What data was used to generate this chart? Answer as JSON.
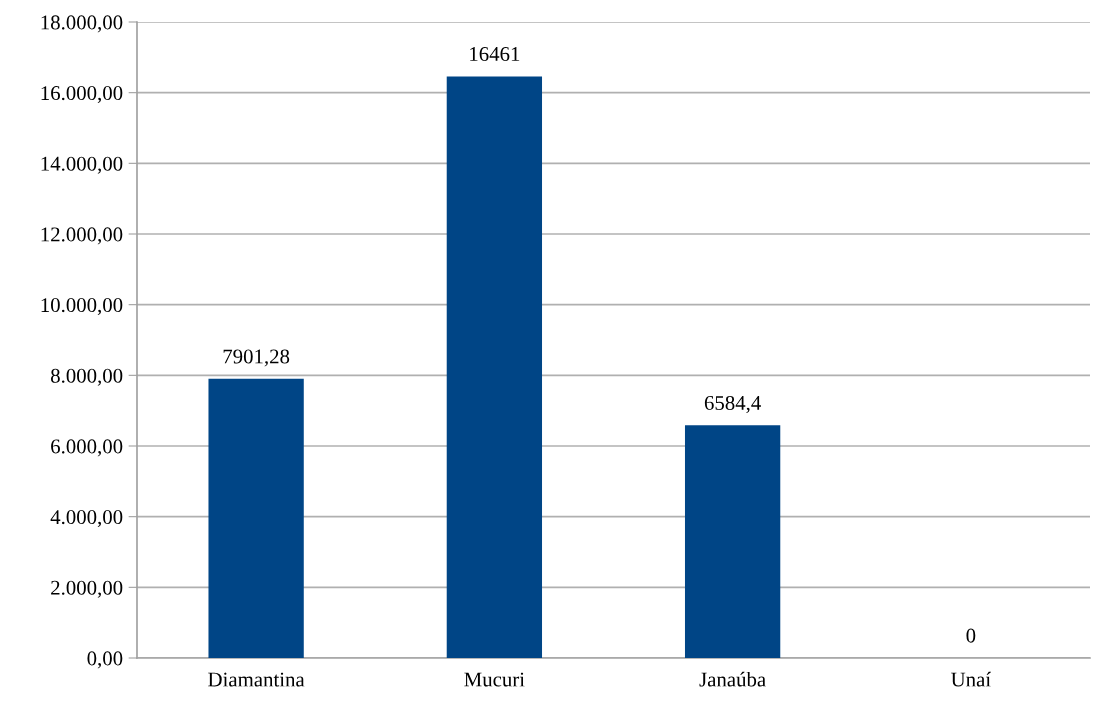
{
  "chart_data": {
    "type": "bar",
    "categories": [
      "Diamantina",
      "Mucuri",
      "Janaúba",
      "Unaí"
    ],
    "values": [
      7901.28,
      16461,
      6584.4,
      0
    ],
    "value_labels": [
      "7901,28",
      "16461",
      "6584,4",
      "0"
    ],
    "color": "#004586",
    "ylim": [
      0,
      18000
    ],
    "yticks": [
      {
        "value": 0,
        "label": "0,00"
      },
      {
        "value": 2000,
        "label": "2.000,00"
      },
      {
        "value": 4000,
        "label": "4.000,00"
      },
      {
        "value": 6000,
        "label": "6.000,00"
      },
      {
        "value": 8000,
        "label": "8.000,00"
      },
      {
        "value": 10000,
        "label": "10.000,00"
      },
      {
        "value": 12000,
        "label": "12.000,00"
      },
      {
        "value": 14000,
        "label": "14.000,00"
      },
      {
        "value": 16000,
        "label": "16.000,00"
      },
      {
        "value": 18000,
        "label": "18.000,00"
      }
    ],
    "grid": "y"
  }
}
